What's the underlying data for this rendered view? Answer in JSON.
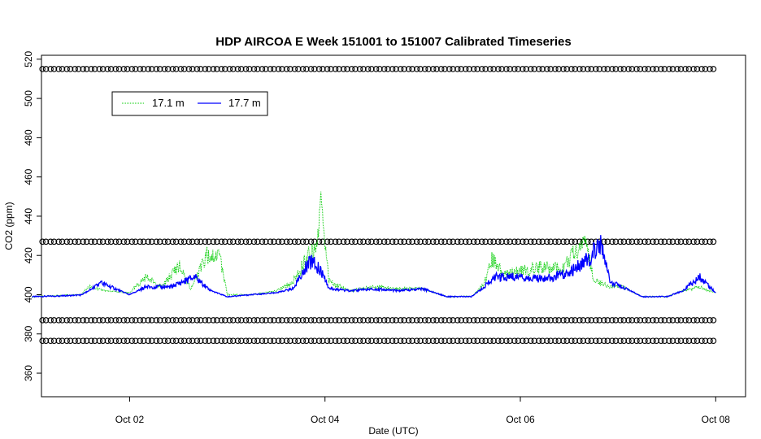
{
  "chart_data": {
    "type": "line",
    "title": "HDP AIRCOA E  Week 151001 to 151007  Calibrated Timeseries",
    "xlabel": "Date (UTC)",
    "ylabel": "CO2 (ppm)",
    "xlim": [
      "2015-10-01 02:20",
      "2015-10-08 07:20"
    ],
    "ylim": [
      348,
      522
    ],
    "x_ticks": [
      {
        "date": "2015-10-02 00:00",
        "label": "Oct 02"
      },
      {
        "date": "2015-10-04 00:00",
        "label": "Oct 04"
      },
      {
        "date": "2015-10-06 00:00",
        "label": "Oct 06"
      },
      {
        "date": "2015-10-08 00:00",
        "label": "Oct 08"
      }
    ],
    "y_ticks": [
      360,
      380,
      400,
      420,
      440,
      460,
      480,
      500,
      520
    ],
    "grid": false,
    "legend": {
      "placement": "top-left",
      "entries": [
        "17.1 m",
        "17.7 m"
      ]
    },
    "series": [
      {
        "name": "17.1 m",
        "color": "#00cc00",
        "style": "dotted",
        "points": [
          [
            "2015-10-01 00:00",
            399
          ],
          [
            "2015-10-01 06:00",
            399.5
          ],
          [
            "2015-10-01 12:00",
            400
          ],
          [
            "2015-10-01 14:00",
            404
          ],
          [
            "2015-10-01 18:00",
            402
          ],
          [
            "2015-10-02 00:00",
            401
          ],
          [
            "2015-10-02 04:00",
            409
          ],
          [
            "2015-10-02 08:00",
            404
          ],
          [
            "2015-10-02 12:00",
            415
          ],
          [
            "2015-10-02 15:00",
            403
          ],
          [
            "2015-10-02 19:00",
            420
          ],
          [
            "2015-10-02 22:00",
            420
          ],
          [
            "2015-10-03 00:00",
            400
          ],
          [
            "2015-10-03 06:00",
            400
          ],
          [
            "2015-10-03 12:00",
            402
          ],
          [
            "2015-10-03 16:00",
            406
          ],
          [
            "2015-10-03 20:00",
            421
          ],
          [
            "2015-10-03 22:00",
            422
          ],
          [
            "2015-10-03 23:00",
            449
          ],
          [
            "2015-10-04 01:00",
            407
          ],
          [
            "2015-10-04 06:00",
            402
          ],
          [
            "2015-10-04 12:00",
            404
          ],
          [
            "2015-10-04 18:00",
            403
          ],
          [
            "2015-10-05 00:00",
            403
          ],
          [
            "2015-10-05 06:00",
            399
          ],
          [
            "2015-10-05 12:00",
            399
          ],
          [
            "2015-10-05 15:00",
            405
          ],
          [
            "2015-10-05 17:00",
            418
          ],
          [
            "2015-10-05 20:00",
            410
          ],
          [
            "2015-10-06 00:00",
            412
          ],
          [
            "2015-10-06 06:00",
            414
          ],
          [
            "2015-10-06 10:00",
            413
          ],
          [
            "2015-10-06 16:00",
            428
          ],
          [
            "2015-10-06 18:00",
            408
          ],
          [
            "2015-10-06 22:00",
            404
          ],
          [
            "2015-10-07 00:00",
            405
          ],
          [
            "2015-10-07 06:00",
            399
          ],
          [
            "2015-10-07 12:00",
            399
          ],
          [
            "2015-10-07 16:00",
            402
          ],
          [
            "2015-10-07 20:00",
            404
          ],
          [
            "2015-10-08 00:00",
            401
          ]
        ]
      },
      {
        "name": "17.7 m",
        "color": "#0000ff",
        "style": "solid",
        "points": [
          [
            "2015-10-01 00:00",
            399
          ],
          [
            "2015-10-01 06:00",
            399.3
          ],
          [
            "2015-10-01 12:00",
            399.8
          ],
          [
            "2015-10-01 14:00",
            402
          ],
          [
            "2015-10-01 17:00",
            406
          ],
          [
            "2015-10-02 00:00",
            400
          ],
          [
            "2015-10-02 04:00",
            404
          ],
          [
            "2015-10-02 10:00",
            404
          ],
          [
            "2015-10-02 16:00",
            409
          ],
          [
            "2015-10-02 20:00",
            402
          ],
          [
            "2015-10-03 00:00",
            399
          ],
          [
            "2015-10-03 06:00",
            400
          ],
          [
            "2015-10-03 12:00",
            401
          ],
          [
            "2015-10-03 16:00",
            403
          ],
          [
            "2015-10-03 19:00",
            413
          ],
          [
            "2015-10-03 21:00",
            418
          ],
          [
            "2015-10-03 23:00",
            412
          ],
          [
            "2015-10-04 01:00",
            403
          ],
          [
            "2015-10-04 06:00",
            402
          ],
          [
            "2015-10-04 12:00",
            403
          ],
          [
            "2015-10-04 18:00",
            402
          ],
          [
            "2015-10-05 00:00",
            403
          ],
          [
            "2015-10-05 06:00",
            399
          ],
          [
            "2015-10-05 12:00",
            399
          ],
          [
            "2015-10-05 15:00",
            404
          ],
          [
            "2015-10-05 18:00",
            409
          ],
          [
            "2015-10-06 00:00",
            409
          ],
          [
            "2015-10-06 06:00",
            408
          ],
          [
            "2015-10-06 12:00",
            411
          ],
          [
            "2015-10-06 16:00",
            417
          ],
          [
            "2015-10-06 20:00",
            426
          ],
          [
            "2015-10-06 22:00",
            406
          ],
          [
            "2015-10-07 00:00",
            405
          ],
          [
            "2015-10-07 06:00",
            399
          ],
          [
            "2015-10-07 12:00",
            399
          ],
          [
            "2015-10-07 16:00",
            402
          ],
          [
            "2015-10-07 20:00",
            409
          ],
          [
            "2015-10-08 00:00",
            401
          ]
        ]
      },
      {
        "name": "",
        "style": "open-circles",
        "color": "#000000",
        "levels": [
          515,
          427,
          387,
          376.5
        ],
        "x_range": [
          "2015-10-01 03:00",
          "2015-10-08 00:00"
        ],
        "interval_hours": 2
      }
    ]
  }
}
